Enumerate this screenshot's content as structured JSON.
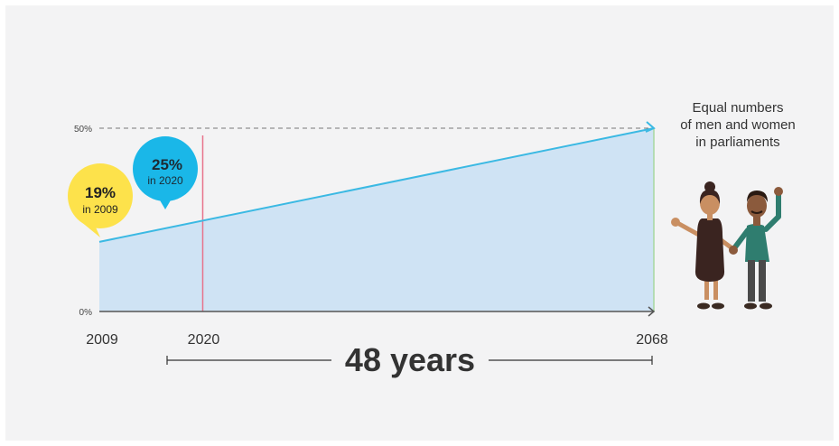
{
  "chart_data": {
    "type": "area",
    "x": [
      2009,
      2020,
      2068
    ],
    "values": [
      19,
      25,
      50
    ],
    "ylim": [
      0,
      50
    ],
    "y_ticks": [
      "0%",
      "50%"
    ],
    "x_ticks": [
      "2009",
      "2020",
      "2068"
    ],
    "grid": false,
    "callouts": [
      {
        "value": "19%",
        "label": "in 2009"
      },
      {
        "value": "25%",
        "label": "in 2020"
      }
    ],
    "annotation_lines": [
      "Equal numbers",
      "of men and women",
      "in parliaments"
    ],
    "span_label": "48 years"
  },
  "colors": {
    "area_fill": "#cfe3f4",
    "trend_line": "#3bb9e3",
    "marker_line": "#e8728b",
    "callout_2009": "#fde24b",
    "callout_2020": "#1ab7e8",
    "end_line": "#a7d7a0",
    "axis": "#555555"
  },
  "illustration": {
    "woman": "woman-figure",
    "man": "man-figure"
  }
}
